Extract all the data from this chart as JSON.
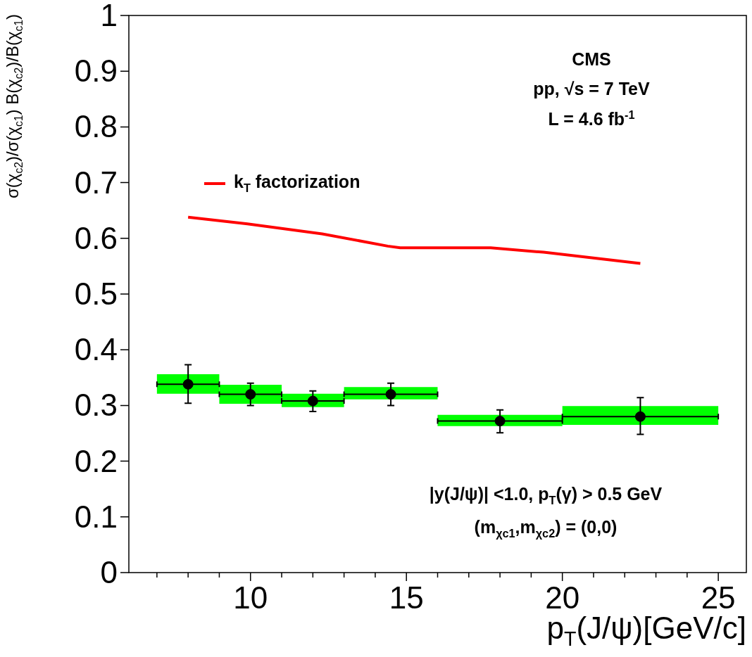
{
  "chart_data": {
    "type": "scatter",
    "xlabel": "p$_{T}$(J/ψ)[GeV/c]",
    "ylabel": "σ(χ$_{c2}$)/σ(χ$_{c1}$) B(χ$_{c2}$)/B(χ$_{c1}$)",
    "xlim": [
      6.1,
      25.9
    ],
    "xticks": [
      {
        "value": 7,
        "label": null
      },
      {
        "value": 8,
        "label": null
      },
      {
        "value": 9,
        "label": null
      },
      10,
      {
        "value": 11,
        "label": null
      },
      {
        "value": 12,
        "label": null
      },
      {
        "value": 13,
        "label": null
      },
      {
        "value": 14,
        "label": null
      },
      15,
      {
        "value": 16,
        "label": null
      },
      {
        "value": 17,
        "label": null
      },
      {
        "value": 18,
        "label": null
      },
      {
        "value": 19,
        "label": null
      },
      20,
      {
        "value": 21,
        "label": null
      },
      {
        "value": 22,
        "label": null
      },
      {
        "value": 23,
        "label": null
      },
      {
        "value": 24,
        "label": null
      },
      25
    ],
    "ylim": [
      0,
      1
    ],
    "yticks": [
      0,
      0.1,
      0.2,
      0.3,
      0.4,
      0.5,
      0.6,
      0.7,
      0.8,
      0.9,
      1
    ],
    "grid": false,
    "legend": "top left",
    "series": [
      {
        "type": "bar",
        "color": "#00ff00",
        "x": [
          8,
          10,
          12,
          14.5,
          18,
          22.5
        ],
        "base": [
          0.321,
          0.303,
          0.297,
          0.311,
          0.263,
          0.265
        ],
        "values": [
          0.035,
          0.034,
          0.024,
          0.022,
          0.02,
          0.034
        ]
      },
      {
        "color": "#000000",
        "marker": "circle",
        "x": [
          8,
          10,
          12,
          14.5,
          18,
          22.5
        ],
        "values": [
          0.338,
          0.32,
          0.308,
          0.32,
          0.272,
          0.28
        ],
        "errors": [
          [
            0.304,
            0.373
          ],
          [
            0.3,
            0.34
          ],
          [
            0.289,
            0.326
          ],
          [
            0.3,
            0.34
          ],
          [
            0.251,
            0.292
          ],
          [
            0.248,
            0.314
          ]
        ],
        "xerrors": [
          1,
          1,
          1,
          1.5,
          2,
          2.5
        ]
      },
      {
        "type": "line",
        "name": "k$_{T}$ factorization",
        "color": "#ff0000",
        "marker": "none",
        "x": [
          8,
          9.9,
          12.3,
          14.4,
          14.8,
          17.7,
          19.4,
          22.5
        ],
        "values": [
          0.638,
          0.626,
          0.608,
          0.586,
          0.583,
          0.583,
          0.575,
          0.555
        ]
      }
    ],
    "annotations": [
      "CMS",
      "pp, √s = 7 TeV",
      "L = 4.6 fb$^{-1}$",
      "|y(J/ψ)| <1.0, p$_{T}$(γ) > 0.5 GeV",
      "(m$_{χc1}$,m$_{χc2}$) = (0,0)"
    ]
  }
}
